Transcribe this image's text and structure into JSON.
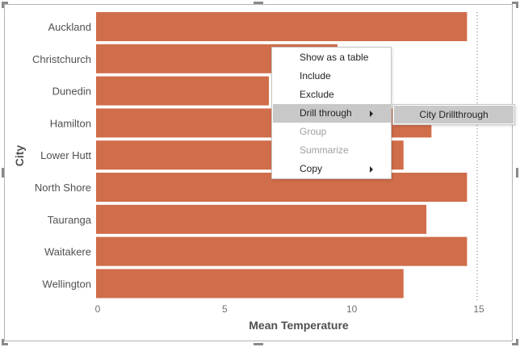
{
  "chart_data": {
    "type": "bar",
    "orientation": "horizontal",
    "categories": [
      "Auckland",
      "Christchurch",
      "Dunedin",
      "Hamilton",
      "Lower Hutt",
      "North Shore",
      "Tauranga",
      "Waitakere",
      "Wellington"
    ],
    "values": [
      14.6,
      9.5,
      6.8,
      13.2,
      12.1,
      14.6,
      13.0,
      14.6,
      12.1
    ],
    "xlabel": "Mean Temperature",
    "ylabel": "City",
    "xlim": [
      0,
      15
    ],
    "xticks": [
      "0",
      "5",
      "10",
      "15"
    ],
    "reference_line": 15,
    "bar_color": "#d06d4a"
  },
  "context_menu": {
    "items": [
      {
        "label": "Show as a table",
        "enabled": true,
        "submenu": false
      },
      {
        "label": "Include",
        "enabled": true,
        "submenu": false
      },
      {
        "label": "Exclude",
        "enabled": true,
        "submenu": false
      },
      {
        "label": "Drill through",
        "enabled": true,
        "submenu": true,
        "highlighted": true
      },
      {
        "label": "Group",
        "enabled": false,
        "submenu": false
      },
      {
        "label": "Summarize",
        "enabled": false,
        "submenu": false
      },
      {
        "label": "Copy",
        "enabled": true,
        "submenu": true
      }
    ]
  },
  "drill_submenu": {
    "items": [
      {
        "label": "City Drillthrough"
      }
    ]
  }
}
